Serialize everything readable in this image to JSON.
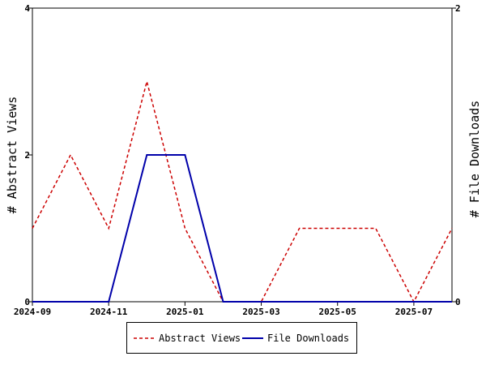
{
  "chart_data": {
    "type": "line",
    "x": [
      "2024-09",
      "2024-10",
      "2024-11",
      "2024-12",
      "2025-01",
      "2025-02",
      "2025-03",
      "2025-04",
      "2025-05",
      "2025-06",
      "2025-07",
      "2025-08"
    ],
    "x_ticks": [
      "2024-09",
      "2024-11",
      "2025-01",
      "2025-03",
      "2025-05",
      "2025-07"
    ],
    "xlim": [
      "2024-09",
      "2025-08"
    ],
    "series": [
      {
        "name": "Abstract Views",
        "axis": "left",
        "style": "dashed",
        "color": "#cc0000",
        "values": [
          1,
          2,
          1,
          3,
          1,
          0,
          0,
          1,
          1,
          1,
          0,
          1
        ]
      },
      {
        "name": "File Downloads",
        "axis": "right",
        "style": "solid",
        "color": "#0000aa",
        "points": [
          {
            "x": "2024-09",
            "y": 0
          },
          {
            "x": "2024-10",
            "y": 0
          },
          {
            "x": "2024-11",
            "y": 0
          },
          {
            "x": "2024-12",
            "y": 1
          },
          {
            "x": "2025-01",
            "y": 1
          },
          {
            "x": "2025-02",
            "y": 0
          },
          {
            "x": "2025-03",
            "y": 0
          },
          {
            "x": "2025-04",
            "y": 0
          },
          {
            "x": "2025-05",
            "y": 0
          },
          {
            "x": "2025-06",
            "y": 0
          },
          {
            "x": "2025-07",
            "y": 0
          },
          {
            "x": "2025-08",
            "y": 0
          }
        ]
      }
    ],
    "ylabel_left": "# Abstract Views",
    "ylabel_right": "# File Downloads",
    "ylim_left": [
      0,
      4
    ],
    "ylim_right": [
      0,
      2
    ],
    "yticks_left": [
      "0",
      "2",
      "4"
    ],
    "yticks_right": [
      "0",
      "2"
    ],
    "grid": false,
    "legend_position": "bottom"
  },
  "legend": {
    "views_label": "Abstract Views",
    "downloads_label": "File Downloads"
  }
}
